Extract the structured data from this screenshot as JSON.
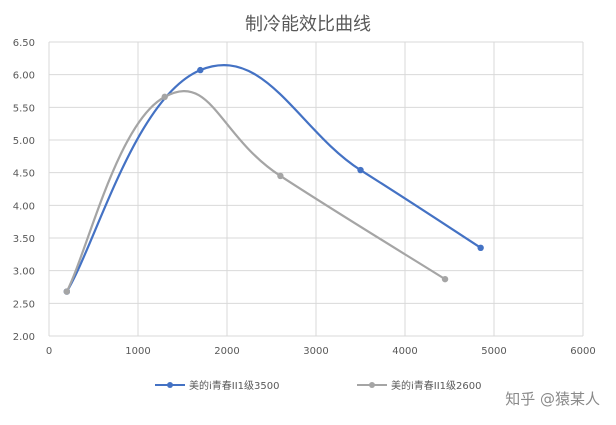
{
  "watermark": "知乎 @猿某人",
  "chart_data": {
    "type": "line",
    "title": "制冷能效比曲线",
    "xlabel": "",
    "ylabel": "",
    "xlim": [
      0,
      6000
    ],
    "ylim": [
      2.0,
      6.5
    ],
    "x_ticks": [
      "0",
      "1000",
      "2000",
      "3000",
      "4000",
      "5000",
      "6000"
    ],
    "y_ticks": [
      "2.00",
      "2.50",
      "3.00",
      "3.50",
      "4.00",
      "4.50",
      "5.00",
      "5.50",
      "6.00",
      "6.50"
    ],
    "grid": "vertical and horizontal",
    "smooth": true,
    "legend_position": "bottom",
    "series": [
      {
        "name": "美的i青春II1级3500",
        "color": "#4472C4",
        "x": [
          200,
          1700,
          3500,
          4850
        ],
        "y": [
          2.68,
          6.07,
          4.54,
          3.35
        ]
      },
      {
        "name": "美的i青春II1级2600",
        "color": "#A5A5A5",
        "x": [
          200,
          1300,
          2600,
          4450
        ],
        "y": [
          2.68,
          5.66,
          4.45,
          2.87
        ]
      }
    ]
  }
}
